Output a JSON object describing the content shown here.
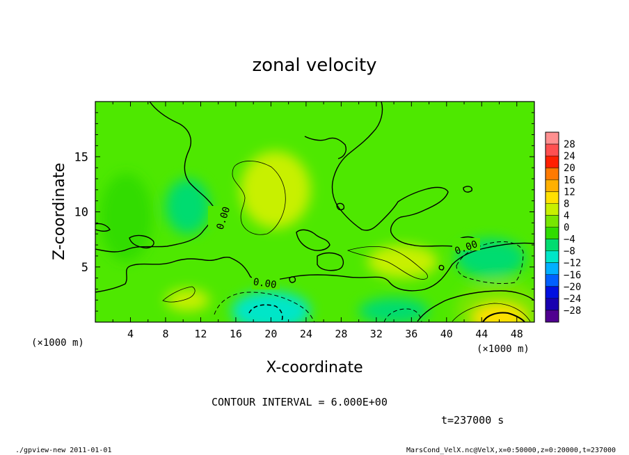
{
  "chart_data": {
    "type": "heatmap",
    "title": "zonal velocity",
    "xlabel": "X-coordinate",
    "ylabel": "Z-coordinate",
    "x_unit": "(×1000 m)",
    "x_unit_right": "(×1000 m)",
    "y_unit": "(×1000 m)",
    "xlim": [
      0,
      50
    ],
    "ylim": [
      0,
      20
    ],
    "x_ticks": [
      "4",
      "8",
      "12",
      "16",
      "20",
      "24",
      "28",
      "32",
      "36",
      "40",
      "44",
      "48"
    ],
    "y_ticks": [
      "5",
      "10",
      "15"
    ],
    "colorbar": {
      "labels": [
        "28",
        "24",
        "20",
        "16",
        "12",
        "8",
        "4",
        "0",
        "−4",
        "−8",
        "−12",
        "−16",
        "−20",
        "−24",
        "−28"
      ],
      "colors": [
        "#ff9090",
        "#ff5050",
        "#ff2000",
        "#ff7a00",
        "#ffb000",
        "#ffe000",
        "#c8f000",
        "#78e600",
        "#30dc00",
        "#00dc70",
        "#00e6c8",
        "#00b0ff",
        "#0060ff",
        "#0010e0",
        "#1800b0",
        "#500090"
      ]
    },
    "contour_labels": [
      "0.00",
      "0.00",
      "0.00"
    ],
    "annotations": {
      "contour_interval": "CONTOUR INTERVAL = 6.000E+00",
      "time": "t=237000 s"
    },
    "footer": {
      "left": "./gpview-new   2011-01-01",
      "right": "MarsCond_VelX.nc@VelX,x=0:50000,z=0:20000,t=237000"
    },
    "field_regions": [
      {
        "x": 20.5,
        "y": 12.0,
        "rx": 4.0,
        "ry": 3.5,
        "value": 5
      },
      {
        "x": 10.5,
        "y": 2.0,
        "rx": 2.5,
        "ry": 1.0,
        "value": 5
      },
      {
        "x": 35.0,
        "y": 5.5,
        "rx": 4.0,
        "ry": 1.5,
        "value": 5
      },
      {
        "x": 20.0,
        "y": 1.0,
        "rx": 4.5,
        "ry": 1.8,
        "value": -9
      },
      {
        "x": 45.0,
        "y": 5.8,
        "rx": 4.0,
        "ry": 1.8,
        "value": -7
      },
      {
        "x": 3.5,
        "y": 9.5,
        "rx": 3.0,
        "ry": 4.0,
        "value": -3
      },
      {
        "x": 10.5,
        "y": 10.5,
        "rx": 2.5,
        "ry": 2.5,
        "value": -5
      },
      {
        "x": 34.0,
        "y": 1.0,
        "rx": 4.0,
        "ry": 1.2,
        "value": -4
      },
      {
        "x": 46.0,
        "y": 1.0,
        "rx": 5.0,
        "ry": 2.8,
        "value": 3
      },
      {
        "x": 46.0,
        "y": 0.4,
        "rx": 3.0,
        "ry": 1.2,
        "value": 12
      }
    ]
  }
}
